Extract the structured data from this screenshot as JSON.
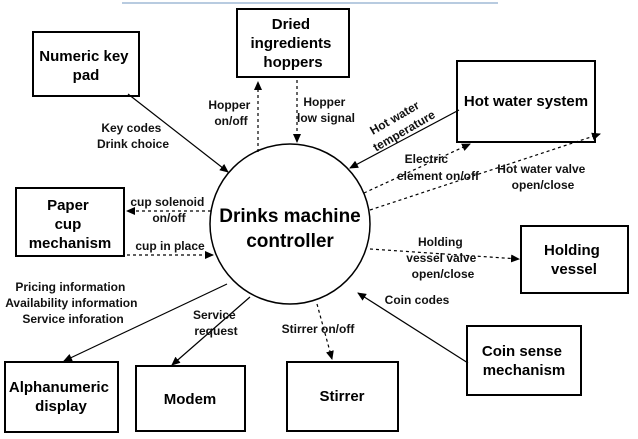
{
  "controller": {
    "line1": "Drinks machine",
    "line2": "controller"
  },
  "boxes": {
    "numeric_keypad": [
      "Numeric key",
      "pad"
    ],
    "dried_hoppers": [
      "Dried",
      "ingredients",
      "hoppers"
    ],
    "hot_water_system": [
      "Hot water system"
    ],
    "paper_cup": [
      "Paper",
      "cup",
      "mechanism"
    ],
    "holding_vessel": [
      "Holding",
      "vessel"
    ],
    "coin_sense": [
      "Coin sense",
      "mechanism"
    ],
    "alphanumeric_display": [
      "Alphanumeric",
      "display"
    ],
    "modem": [
      "Modem"
    ],
    "stirrer": [
      "Stirrer"
    ]
  },
  "labels": {
    "key_codes": [
      "Key codes",
      "Drink choice"
    ],
    "hopper_onoff": [
      "Hopper",
      "on/off"
    ],
    "hopper_low": [
      "Hopper",
      "low signal"
    ],
    "hot_water_temp": [
      "Hot water",
      "temperature"
    ],
    "electric_element": [
      "Electric",
      "element on/off"
    ],
    "hot_water_valve": [
      "Hot water valve",
      "open/close"
    ],
    "cup_solenoid": [
      "cup solenoid",
      "on/off"
    ],
    "cup_in_place": [
      "cup in place"
    ],
    "holding_valve": [
      "Holding",
      "vessel valve",
      "open/close"
    ],
    "coin_codes": [
      "Coin codes"
    ],
    "pricing_info": [
      "Pricing information",
      "Availability information",
      "Service inforation"
    ],
    "service_request": [
      "Service",
      "request"
    ],
    "stirrer_onoff": [
      "Stirrer on/off"
    ]
  }
}
